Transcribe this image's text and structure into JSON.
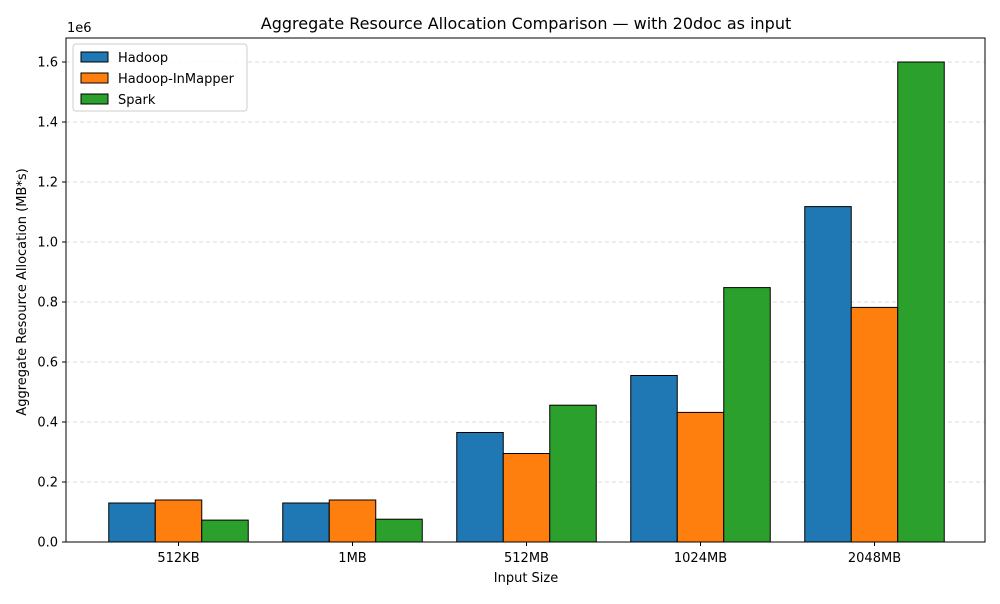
{
  "chart_data": {
    "type": "bar",
    "title": "Aggregate Resource Allocation Comparison — with 20doc as input",
    "xlabel": "Input Size",
    "ylabel": "Aggregate Resource Allocation (MB*s)",
    "y_offset_label": "1e6",
    "categories": [
      "512KB",
      "1MB",
      "512MB",
      "1024MB",
      "2048MB"
    ],
    "ylim": [
      0,
      1680000
    ],
    "yticks": [
      0,
      200000,
      400000,
      600000,
      800000,
      1000000,
      1200000,
      1400000,
      1600000
    ],
    "ytick_labels": [
      "0.0",
      "0.2",
      "0.4",
      "0.6",
      "0.8",
      "1.0",
      "1.2",
      "1.4",
      "1.6"
    ],
    "grid": "y-dashed",
    "legend_position": "top-left",
    "series": [
      {
        "name": "Hadoop",
        "color": "#1f77b4",
        "values": [
          130000,
          130000,
          365000,
          555000,
          1118000
        ]
      },
      {
        "name": "Hadoop-InMapper",
        "color": "#ff7f0e",
        "values": [
          140000,
          140000,
          295000,
          432000,
          782000
        ]
      },
      {
        "name": "Spark",
        "color": "#2ca02c",
        "values": [
          73000,
          76000,
          456000,
          848000,
          1600000
        ]
      }
    ]
  }
}
